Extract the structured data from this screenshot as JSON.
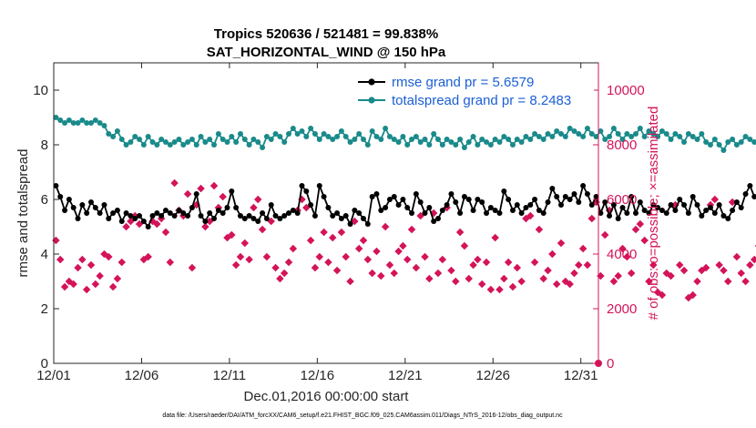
{
  "chart_data": {
    "type": "line",
    "title": "Tropics 520636 / 521481 = 99.838%",
    "subtitle": "SAT_HORIZONTAL_WIND @ 150 hPa",
    "xlabel": "Dec.01,2016 00:00:00 start",
    "ylabel": "rmse and totalspread",
    "ylabel_right": "# of obs: o=possible; ×=assimilated",
    "xlim": [
      0,
      31
    ],
    "ylim": [
      0,
      11
    ],
    "ylim_right": [
      0,
      11000
    ],
    "x_tick_values": [
      0,
      5,
      10,
      15,
      20,
      25,
      30
    ],
    "x_tick_labels": [
      "12/01",
      "12/06",
      "12/11",
      "12/16",
      "12/21",
      "12/26",
      "12/31"
    ],
    "y_ticks": [
      "0",
      "2",
      "4",
      "6",
      "8",
      "10"
    ],
    "y_tick_values": [
      0,
      2,
      4,
      6,
      8,
      10
    ],
    "y_ticks_right": [
      "0",
      "2000",
      "4000",
      "6000",
      "8000",
      "10000"
    ],
    "y_tick_values_right": [
      0,
      2000,
      4000,
      6000,
      8000,
      10000
    ],
    "x_step_days": 0.25,
    "series": [
      {
        "name": "rmse grand pr = 5.6579",
        "color": "#000000",
        "axis": "left",
        "values": [
          6.5,
          6.1,
          5.6,
          6.0,
          5.7,
          5.3,
          5.8,
          5.5,
          5.9,
          5.7,
          5.5,
          5.8,
          5.3,
          5.5,
          5.6,
          5.2,
          5.5,
          5.4,
          5.3,
          5.4,
          5.2,
          5.0,
          5.4,
          5.5,
          5.4,
          5.6,
          5.5,
          5.4,
          5.6,
          5.5,
          5.4,
          5.7,
          6.2,
          5.4,
          5.2,
          5.5,
          5.3,
          5.6,
          5.5,
          5.7,
          6.3,
          5.7,
          5.4,
          5.3,
          5.4,
          5.3,
          5.2,
          5.5,
          5.3,
          5.8,
          5.4,
          5.3,
          5.4,
          5.5,
          5.6,
          5.5,
          6.5,
          6.3,
          5.8,
          5.4,
          6.5,
          6.1,
          5.7,
          5.4,
          5.5,
          5.3,
          5.4,
          5.1,
          5.6,
          5.5,
          5.3,
          5.1,
          6.1,
          6.2,
          5.6,
          5.7,
          6.0,
          6.1,
          5.8,
          6.0,
          5.7,
          5.5,
          6.2,
          5.9,
          5.5,
          5.7,
          5.2,
          5.3,
          5.6,
          5.8,
          6.2,
          5.9,
          5.5,
          6.1,
          6.0,
          5.6,
          6.0,
          5.9,
          5.5,
          5.7,
          5.6,
          5.5,
          6.3,
          6.0,
          5.6,
          5.8,
          5.5,
          5.7,
          5.8,
          6.0,
          5.6,
          5.5,
          5.9,
          6.4,
          6.1,
          5.8,
          6.1,
          6.0,
          6.2,
          5.9,
          6.5,
          6.2,
          5.8,
          6.1,
          5.5,
          5.9,
          5.4,
          5.8,
          5.3,
          5.7,
          5.5,
          6.1,
          5.5,
          5.9,
          5.6,
          5.5,
          5.8,
          5.7,
          5.6,
          5.5,
          5.8,
          5.6,
          6.0,
          5.8,
          5.5,
          6.1,
          5.8,
          5.4,
          5.6,
          5.7,
          5.5,
          5.8,
          5.4,
          5.3,
          5.6,
          5.9,
          5.7,
          6.2,
          6.5,
          6.1,
          6.2,
          6.1,
          6.8
        ]
      },
      {
        "name": "totalspread grand pr = 8.2483",
        "color": "#1a8a8a",
        "axis": "left",
        "values": [
          9.0,
          8.9,
          8.8,
          8.9,
          8.8,
          8.8,
          8.9,
          8.8,
          8.8,
          8.9,
          8.8,
          8.7,
          8.4,
          8.3,
          8.5,
          8.2,
          8.0,
          8.1,
          8.3,
          8.2,
          8.0,
          8.3,
          8.1,
          8.0,
          8.2,
          8.1,
          8.0,
          8.1,
          8.2,
          8.0,
          8.1,
          8.2,
          8.0,
          8.3,
          8.1,
          8.2,
          8.0,
          8.4,
          8.2,
          8.1,
          8.3,
          8.1,
          8.4,
          8.2,
          8.0,
          8.2,
          8.1,
          7.9,
          8.3,
          8.2,
          8.4,
          8.3,
          8.1,
          8.4,
          8.6,
          8.4,
          8.5,
          8.3,
          8.6,
          8.4,
          8.2,
          8.4,
          8.3,
          8.2,
          8.3,
          8.5,
          8.3,
          8.1,
          8.2,
          8.4,
          8.2,
          8.0,
          8.5,
          8.3,
          8.2,
          8.6,
          8.3,
          8.2,
          8.1,
          8.3,
          8.0,
          8.2,
          8.3,
          8.1,
          8.2,
          8.0,
          8.4,
          8.2,
          8.0,
          8.2,
          8.1,
          8.0,
          8.2,
          7.9,
          8.1,
          8.3,
          8.0,
          8.2,
          8.1,
          8.0,
          8.2,
          8.1,
          8.3,
          8.2,
          8.0,
          8.2,
          8.1,
          8.3,
          8.2,
          8.4,
          8.3,
          8.2,
          8.4,
          8.3,
          8.5,
          8.4,
          8.3,
          8.6,
          8.5,
          8.4,
          8.3,
          8.6,
          8.4,
          8.3,
          8.5,
          8.2,
          8.3,
          8.6,
          8.4,
          8.2,
          8.4,
          8.3,
          8.4,
          8.6,
          8.3,
          8.5,
          8.4,
          8.3,
          8.5,
          8.4,
          8.2,
          8.4,
          8.3,
          8.1,
          8.4,
          8.3,
          8.2,
          8.4,
          8.1,
          8.0,
          8.2,
          8.0,
          7.8,
          8.1,
          8.2,
          8.0,
          8.1,
          8.3,
          8.2,
          8.1,
          8.2,
          8.0,
          8.1,
          8.0,
          8.1
        ]
      },
      {
        "name": "# of obs assimilated",
        "color": "#d4145a",
        "axis": "right",
        "values": [
          4500,
          3800,
          2800,
          3000,
          2900,
          3500,
          3800,
          2700,
          3600,
          2900,
          3200,
          4000,
          3900,
          2800,
          3100,
          3700,
          5000,
          5200,
          5400,
          5100,
          3800,
          3900,
          5200,
          5100,
          5300,
          4800,
          3700,
          6600,
          5600,
          5400,
          6200,
          3500,
          5800,
          6400,
          5000,
          5200,
          6500,
          5700,
          6100,
          4600,
          4700,
          3600,
          3900,
          4400,
          3800,
          5700,
          6000,
          4900,
          3900,
          5200,
          3500,
          3100,
          3300,
          3700,
          4200,
          5600,
          6000,
          5700,
          4500,
          3500,
          3900,
          4800,
          3700,
          4600,
          3400,
          4800,
          3900,
          3000,
          5200,
          4200,
          4500,
          3800,
          3300,
          4100,
          3200,
          5000,
          3600,
          3300,
          4100,
          4300,
          3800,
          4900,
          3500,
          5400,
          3900,
          3100,
          5500,
          3300,
          3800,
          5700,
          3400,
          3000,
          4800,
          4300,
          3100,
          3600,
          3800,
          2900,
          3700,
          2700,
          4600,
          2700,
          3100,
          3700,
          2800,
          3500,
          3000,
          5300,
          5400,
          3700,
          4900,
          3100,
          3400,
          4000,
          2900,
          4400,
          3000,
          2900,
          3300,
          3600,
          4200,
          3600,
          5300,
          5900,
          3200,
          4700,
          5600,
          3000,
          3200,
          4200,
          3900,
          3300,
          4900,
          5100,
          4500,
          3000,
          3600,
          2600,
          2500,
          3300,
          3200,
          5800,
          3600,
          3400,
          2400,
          2500,
          3000,
          3400,
          3500,
          5800,
          6000,
          3600,
          3400,
          3000,
          5900,
          3900,
          3300,
          3000,
          3600,
          3800,
          4300,
          3400,
          3700,
          2800,
          3500,
          3000,
          2300
        ]
      }
    ],
    "footnote": "data file: /Users/raeder/DAI/ATM_forcXX/CAM6_setup/f.e21.FHIST_BGC.f09_025.CAM6assim.011/Diags_NTrS_2016-12/obs_diag_output.nc",
    "legend_location": "top-right"
  },
  "colors": {
    "rmse": "#000000",
    "spread": "#1a8a8a",
    "obs": "#d4145a",
    "legend_text": "#1a5fd6"
  }
}
